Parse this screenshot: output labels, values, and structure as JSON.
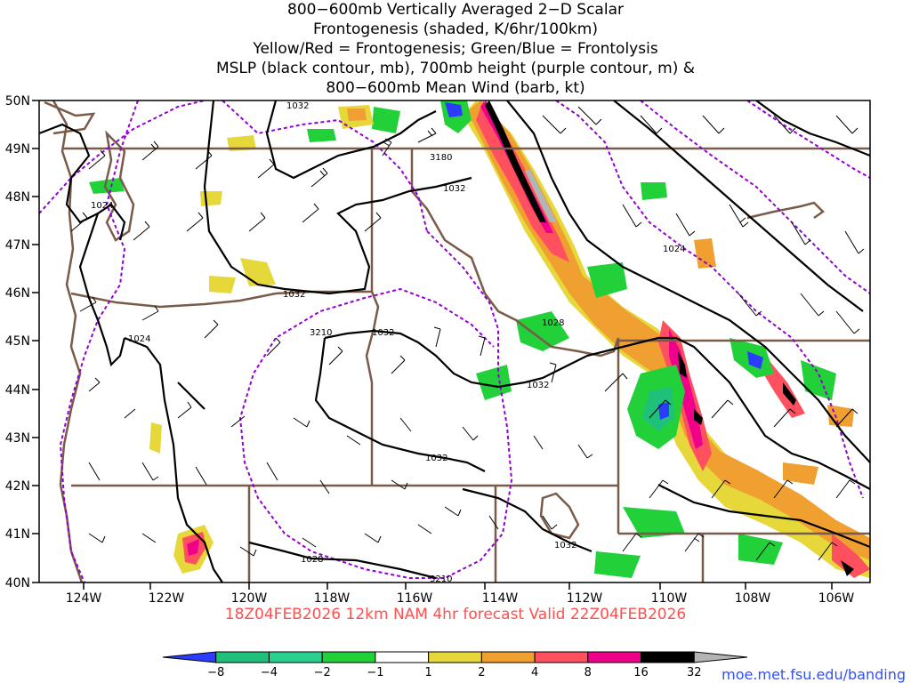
{
  "title": {
    "lines": [
      "800−600mb Vertically Averaged 2−D Scalar",
      "Frontogenesis (shaded, K/6hr/100km)",
      "Yellow/Red = Frontogenesis;  Green/Blue = Frontolysis",
      "MSLP (black contour, mb), 700mb height (purple contour, m) &",
      "800−600mb Mean Wind (barb, kt)"
    ]
  },
  "axes": {
    "lat_labels": [
      "50N",
      "49N",
      "48N",
      "47N",
      "46N",
      "45N",
      "44N",
      "43N",
      "42N",
      "41N",
      "40N"
    ],
    "lon_labels": [
      "124W",
      "122W",
      "120W",
      "118W",
      "116W",
      "114W",
      "112W",
      "110W",
      "108W",
      "106W"
    ]
  },
  "contour_labels": [
    {
      "text": "1032"
    },
    {
      "text": "3180"
    },
    {
      "text": "1032"
    },
    {
      "text": "1024"
    },
    {
      "text": "1024"
    },
    {
      "text": "1032"
    },
    {
      "text": "3210"
    },
    {
      "text": "1032"
    },
    {
      "text": "1024"
    },
    {
      "text": "1028"
    },
    {
      "text": "1032"
    },
    {
      "text": "1032"
    },
    {
      "text": "1032"
    },
    {
      "text": "1028"
    },
    {
      "text": "3210"
    }
  ],
  "footer": {
    "valid": "18Z04FEB2026 12km NAM 4hr forecast Valid 22Z04FEB2026",
    "url": "moe.met.fsu.edu/banding"
  },
  "colorbar": {
    "labels": [
      "−8",
      "−4",
      "−2",
      "−1",
      "1",
      "2",
      "4",
      "8",
      "16",
      "32"
    ],
    "colors": [
      "#2b3bff",
      "#1fc07a",
      "#2ad090",
      "#22d03a",
      "#ffffff",
      "#e6d83a",
      "#f0a030",
      "#ff5060",
      "#f0008a",
      "#000000",
      "#b4b4b4"
    ]
  },
  "colors": {
    "mslp": "#000000",
    "height": "#9400d3",
    "borders": "#7a5a48",
    "valid_text": "#ff5050",
    "url_text": "#3050ff"
  }
}
